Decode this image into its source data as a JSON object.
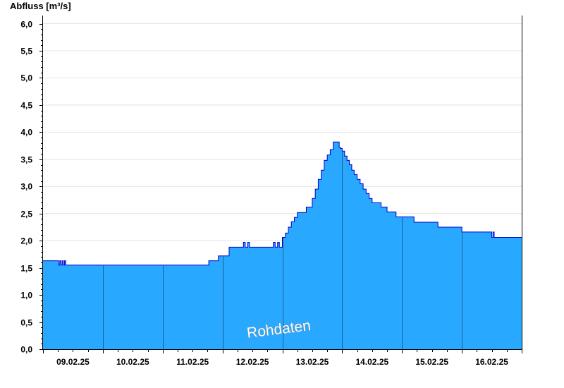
{
  "chart_data": {
    "type": "area",
    "ylabel": "Abfluss [m³/s]",
    "ylim": [
      0,
      6.15
    ],
    "yticks": [
      {
        "value": 0,
        "label": "0,0"
      },
      {
        "value": 0.5,
        "label": "0,5"
      },
      {
        "value": 1,
        "label": "1,0"
      },
      {
        "value": 1.5,
        "label": "1,5"
      },
      {
        "value": 2,
        "label": "2,0"
      },
      {
        "value": 2.5,
        "label": "2,5"
      },
      {
        "value": 3,
        "label": "3,0"
      },
      {
        "value": 3.5,
        "label": "3,5"
      },
      {
        "value": 4,
        "label": "4,0"
      },
      {
        "value": 4.5,
        "label": "4,5"
      },
      {
        "value": 5,
        "label": "5,0"
      },
      {
        "value": 5.5,
        "label": "5,5"
      },
      {
        "value": 6,
        "label": "6,0"
      }
    ],
    "xlim": [
      0,
      8
    ],
    "xtick_labels": [
      "09.02.25",
      "10.02.25",
      "11.02.25",
      "12.02.25",
      "13.02.25",
      "14.02.25",
      "15.02.25",
      "16.02.25"
    ],
    "annotation": "Rohdaten",
    "grid": true,
    "fill_color": "#29a8ff",
    "line_color": "#0000cc",
    "x": [
      0,
      0.24,
      0.26,
      0.28,
      0.3,
      0.32,
      0.34,
      0.36,
      0.38,
      1.0,
      2.0,
      2.76,
      2.77,
      2.92,
      2.93,
      3.1,
      3.11,
      3.3,
      3.35,
      3.38,
      3.42,
      3.45,
      3.5,
      3.55,
      3.8,
      3.85,
      3.88,
      3.92,
      3.95,
      4.0,
      4.05,
      4.1,
      4.15,
      4.2,
      4.25,
      4.3,
      4.4,
      4.5,
      4.55,
      4.6,
      4.65,
      4.7,
      4.75,
      4.8,
      4.85,
      4.9,
      4.95,
      4.97,
      5.0,
      5.04,
      5.08,
      5.12,
      5.16,
      5.2,
      5.25,
      5.3,
      5.35,
      5.4,
      5.45,
      5.5,
      5.55,
      5.6,
      5.65,
      5.7,
      5.75,
      5.8,
      5.9,
      6.0,
      6.2,
      6.4,
      6.6,
      7.0,
      7.3,
      7.5,
      7.52,
      7.54,
      7.56,
      8.0
    ],
    "y": [
      1.63,
      1.63,
      1.55,
      1.63,
      1.55,
      1.63,
      1.55,
      1.63,
      1.55,
      1.55,
      1.55,
      1.55,
      1.63,
      1.63,
      1.72,
      1.72,
      1.88,
      1.88,
      1.97,
      1.88,
      1.97,
      1.88,
      1.88,
      1.88,
      1.88,
      1.97,
      1.88,
      1.97,
      1.88,
      2.06,
      2.14,
      2.25,
      2.35,
      2.43,
      2.52,
      2.52,
      2.62,
      2.78,
      2.95,
      3.13,
      3.3,
      3.48,
      3.58,
      3.68,
      3.82,
      3.82,
      3.72,
      3.7,
      3.65,
      3.56,
      3.48,
      3.4,
      3.3,
      3.22,
      3.13,
      3.05,
      2.95,
      2.87,
      2.78,
      2.7,
      2.7,
      2.7,
      2.62,
      2.62,
      2.53,
      2.53,
      2.44,
      2.44,
      2.34,
      2.34,
      2.25,
      2.16,
      2.16,
      2.06,
      2.16,
      2.06,
      2.06,
      2.06
    ]
  }
}
